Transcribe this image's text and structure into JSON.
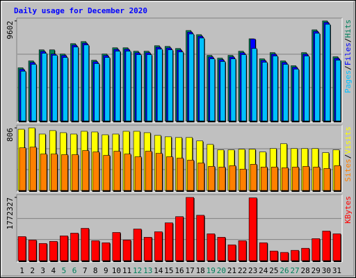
{
  "title": "Daily usage for December 2020",
  "legend_separator": "/",
  "weekend_color": "#00805c",
  "weekend": [
    4,
    5,
    11,
    12,
    18,
    19,
    25,
    26
  ],
  "chart_data": [
    {
      "type": "bar",
      "ylim": [
        0,
        9602
      ],
      "yticks": [
        9602
      ],
      "gridlines": [
        3201,
        6401
      ],
      "series": [
        {
          "name": "Hits",
          "color": "#00805c",
          "values": [
            5099,
            5761,
            6821,
            6821,
            6423,
            7417,
            7615,
            5827,
            6423,
            7020,
            7020,
            6688,
            6688,
            7218,
            7152,
            6953,
            8675,
            8278,
            6291,
            6026,
            6291,
            6688,
            7880,
            5960,
            6556,
            5761,
            5298,
            6556,
            8741,
            9602,
            6158
          ]
        },
        {
          "name": "Files",
          "color": "#0000ff",
          "values": [
            4950,
            5610,
            6670,
            6420,
            6280,
            7270,
            7460,
            5680,
            6280,
            6870,
            6880,
            6540,
            6540,
            7070,
            7000,
            6800,
            8520,
            8130,
            6140,
            5880,
            6140,
            6540,
            7860,
            5810,
            6410,
            5610,
            5150,
            6410,
            8590,
            9450,
            6010
          ]
        },
        {
          "name": "Pages",
          "color": "#00c0ff",
          "values": [
            4770,
            5430,
            6490,
            6300,
            6090,
            7090,
            7290,
            5500,
            6090,
            6690,
            6690,
            6360,
            6360,
            6890,
            6820,
            6620,
            8340,
            7950,
            5960,
            5700,
            5960,
            6360,
            6950,
            5630,
            6230,
            5430,
            4970,
            6230,
            8410,
            9270,
            5830
          ]
        }
      ]
    },
    {
      "type": "bar",
      "ylim": [
        0,
        806
      ],
      "yticks": [
        806
      ],
      "gridlines": [
        269,
        537
      ],
      "series": [
        {
          "name": "Visits",
          "color": "#ffff00",
          "values": [
            788,
            806,
            726,
            771,
            744,
            726,
            762,
            753,
            717,
            726,
            762,
            762,
            744,
            709,
            691,
            682,
            682,
            638,
            593,
            523,
            523,
            531,
            531,
            496,
            540,
            602,
            540,
            540,
            540,
            487,
            523
          ]
        },
        {
          "name": "Sites",
          "color": "#ff8000",
          "values": [
            549,
            558,
            469,
            469,
            461,
            461,
            514,
            496,
            452,
            505,
            469,
            434,
            505,
            478,
            434,
            416,
            390,
            354,
            310,
            301,
            319,
            275,
            337,
            301,
            301,
            292,
            301,
            310,
            301,
            283,
            319
          ]
        }
      ]
    },
    {
      "type": "bar",
      "ylim": [
        0,
        1772327
      ],
      "yticks": [
        1772327
      ],
      "gridlines": [
        590776,
        1181551
      ],
      "categories": [
        "1",
        "2",
        "3",
        "4",
        "5",
        "6",
        "7",
        "8",
        "9",
        "10",
        "11",
        "12",
        "13",
        "14",
        "15",
        "16",
        "17",
        "18",
        "19",
        "20",
        "21",
        "22",
        "23",
        "24",
        "25",
        "26",
        "27",
        "28",
        "29",
        "30",
        "31"
      ],
      "series": [
        {
          "name": "KBytes",
          "color": "#ff0000",
          "values": [
            674240,
            577920,
            481600,
            539392,
            693504,
            770560,
            905408,
            558656,
            500864,
            789824,
            577920,
            886144,
            654976,
            809088,
            1059520,
            1232896,
            1772327,
            1271424,
            751296,
            654976,
            443072,
            558656,
            1760000,
            500864,
            269696,
            231168,
            288960,
            346752,
            616448,
            828352,
            751296
          ]
        }
      ]
    }
  ]
}
